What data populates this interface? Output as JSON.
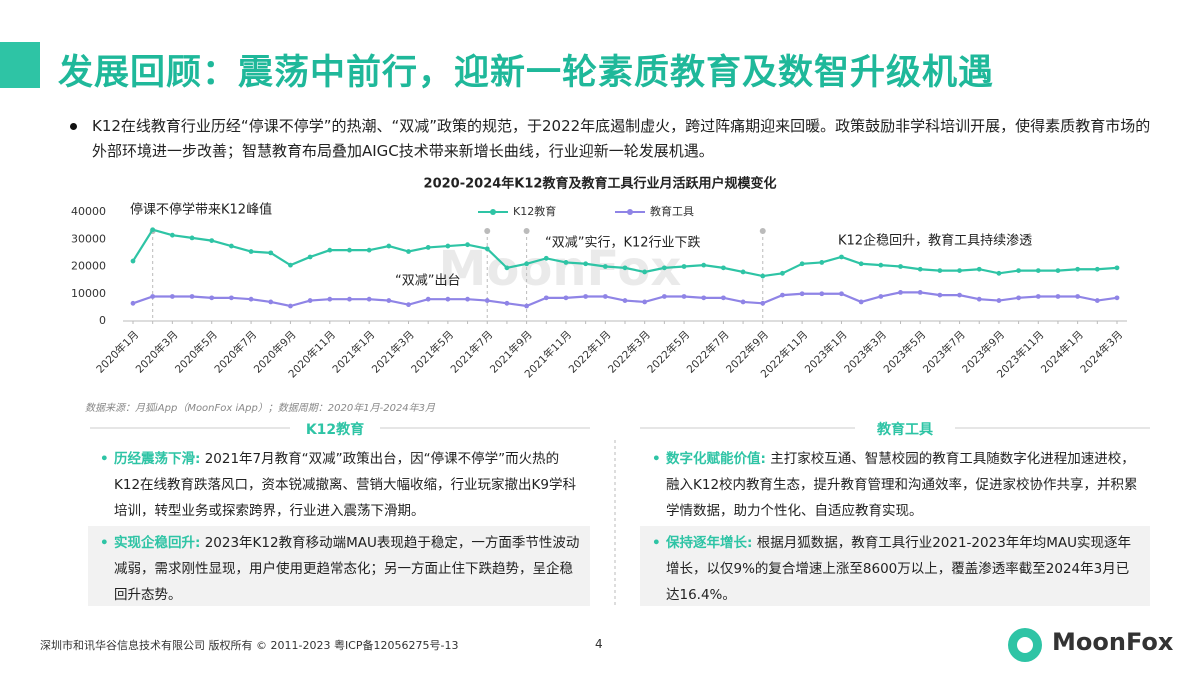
{
  "header": {
    "title": "发展回顾：震荡中前行，迎新一轮素质教育及数智升级机遇"
  },
  "intro": "K12在线教育行业历经“停课不停学”的热潮、“双减”政策的规范，于2022年底遏制虚火，跨过阵痛期迎来回暖。政策鼓励非学科培训开展，使得素质教育市场的外部环境进一步改善；智慧教育布局叠加AIGC技术带来新增长曲线，行业迎新一轮发展机遇。",
  "chart_data": {
    "type": "line",
    "title": "2020-2024年K12教育及教育工具行业月活跃用户规模变化",
    "categories": [
      "2020年1月",
      null,
      "2020年3月",
      null,
      "2020年5月",
      null,
      "2020年7月",
      null,
      "2020年9月",
      null,
      "2020年11月",
      null,
      "2021年1月",
      null,
      "2021年3月",
      null,
      "2021年5月",
      null,
      "2021年7月",
      null,
      "2021年9月",
      null,
      "2021年11月",
      null,
      "2022年1月",
      null,
      "2022年3月",
      null,
      "2022年5月",
      null,
      "2022年7月",
      null,
      "2022年9月",
      null,
      "2022年11月",
      null,
      "2023年1月",
      null,
      "2023年3月",
      null,
      "2023年5月",
      null,
      "2023年7月",
      null,
      "2023年9月",
      null,
      "2023年11月",
      null,
      "2024年1月",
      null,
      "2024年3月"
    ],
    "series": [
      {
        "name": "K12教育",
        "color": "#2ec4a5",
        "values": [
          22000,
          33500,
          31500,
          30500,
          29500,
          27500,
          25500,
          25000,
          20500,
          23500,
          26000,
          26000,
          26000,
          27500,
          25500,
          27000,
          27500,
          28000,
          26500,
          19500,
          21000,
          23000,
          21500,
          21000,
          20000,
          19500,
          18000,
          19500,
          20000,
          20500,
          19500,
          18000,
          16500,
          17500,
          21000,
          21500,
          23500,
          21000,
          20500,
          20000,
          19000,
          18500,
          18500,
          19000,
          17500,
          18500,
          18500,
          18500,
          19000,
          19000,
          19500
        ]
      },
      {
        "name": "教育工具",
        "color": "#8f84e6",
        "values": [
          6500,
          9000,
          9000,
          9000,
          8500,
          8500,
          8000,
          7000,
          5500,
          7500,
          8000,
          8000,
          8000,
          7500,
          6000,
          8000,
          8000,
          8000,
          7500,
          6500,
          5500,
          8500,
          8500,
          9000,
          9000,
          7500,
          7000,
          9000,
          9000,
          8500,
          8500,
          7000,
          6500,
          9500,
          10000,
          10000,
          10000,
          7000,
          9000,
          10500,
          10500,
          9500,
          9500,
          8000,
          7500,
          8500,
          9000,
          9000,
          9000,
          7500,
          8500
        ]
      }
    ],
    "ylim": [
      0,
      40000
    ],
    "yticks": [
      0,
      10000,
      20000,
      30000,
      40000
    ],
    "annotations": [
      "停课不停学带来K12峰值",
      "“双减”出台",
      "“双减”实行，K12行业下跌",
      "K12企稳回升，教育工具持续渗透"
    ],
    "watermark": "MoonFox",
    "source": "数据来源：月狐iApp（MoonFox iApp）；数据周期：2020年1月-2024年3月"
  },
  "panels": [
    {
      "title": "K12教育",
      "items": [
        {
          "label": "历经震荡下滑:",
          "text": "2021年7月教育“双减”政策出台，因“停课不停学”而火热的K12在线教育跌落风口，资本锐减撤离、营销大幅收缩，行业玩家撤出K9学科培训，转型业务或探索跨界，行业进入震荡下滑期。"
        },
        {
          "label": "实现企稳回升:",
          "text": "2023年K12教育移动端MAU表现趋于稳定，一方面季节性波动减弱，需求刚性显现，用户使用更趋常态化；另一方面止住下跌趋势，呈企稳回升态势。"
        }
      ]
    },
    {
      "title": "教育工具",
      "items": [
        {
          "label": "数字化赋能价值:",
          "text": "主打家校互通、智慧校园的教育工具随数字化进程加速进校，融入K12校内教育生态，提升教育管理和沟通效率，促进家校协作共享，并积累学情数据，助力个性化、自适应教育实现。"
        },
        {
          "label": "保持逐年增长:",
          "text": "根据月狐数据，教育工具行业2021-2023年年均MAU实现逐年增长，以仅9%的复合增速上涨至8600万以上，覆盖渗透率截至2024年3月已达16.4%。"
        }
      ]
    }
  ],
  "footer": {
    "copyright": "深圳市和讯华谷信息技术有限公司 版权所有 © 2011-2023 粤ICP备12056275号-13",
    "page": 4,
    "logo": "MoonFox"
  }
}
